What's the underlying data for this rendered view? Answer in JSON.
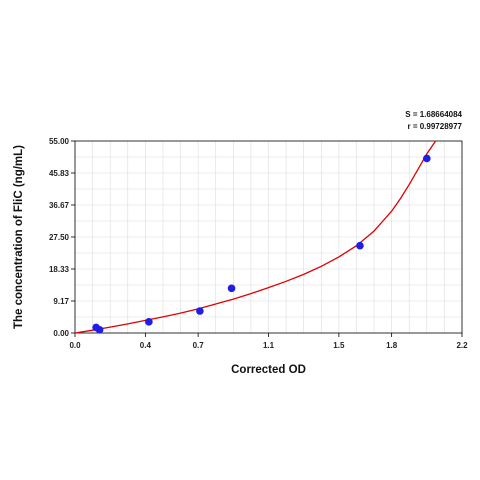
{
  "chart_data": {
    "type": "scatter",
    "xlabel": "Corrected OD",
    "ylabel": "The concentration of FliC (ng/mL)",
    "xlim": [
      0.0,
      2.2
    ],
    "ylim": [
      0.0,
      55.0
    ],
    "x_ticks": [
      0.0,
      0.4,
      0.7,
      1.1,
      1.5,
      1.8,
      2.2
    ],
    "x_tick_labels": [
      "0.0",
      "0.4",
      "0.7",
      "1.1",
      "1.5",
      "1.8",
      "2.2"
    ],
    "y_ticks": [
      0.0,
      9.17,
      18.33,
      27.5,
      36.67,
      45.83,
      55.0
    ],
    "y_tick_labels": [
      "0.00",
      "9.17",
      "18.33",
      "27.50",
      "36.67",
      "45.83",
      "55.00"
    ],
    "grid": true,
    "points": [
      {
        "x": 0.12,
        "y": 1.6
      },
      {
        "x": 0.14,
        "y": 0.9
      },
      {
        "x": 0.42,
        "y": 3.2
      },
      {
        "x": 0.71,
        "y": 6.3
      },
      {
        "x": 0.89,
        "y": 12.8
      },
      {
        "x": 1.62,
        "y": 25.0
      },
      {
        "x": 2.0,
        "y": 50.0
      }
    ],
    "fit_curve": {
      "x": [
        0.0,
        0.1,
        0.2,
        0.3,
        0.4,
        0.5,
        0.6,
        0.7,
        0.8,
        0.9,
        1.0,
        1.1,
        1.2,
        1.3,
        1.4,
        1.5,
        1.6,
        1.7,
        1.8,
        1.85,
        1.9,
        1.95,
        2.0,
        2.05
      ],
      "y": [
        0.0,
        0.8,
        1.7,
        2.6,
        3.6,
        4.6,
        5.7,
        6.9,
        8.3,
        9.7,
        11.3,
        13.0,
        14.8,
        16.8,
        19.1,
        21.8,
        25.0,
        29.2,
        34.9,
        38.5,
        42.5,
        46.9,
        51.3,
        55.0
      ],
      "color": "#e00000"
    },
    "point_color": "#1e1ee6",
    "stats": {
      "s": "S = 1.68664084",
      "r": "r = 0.99728977"
    }
  }
}
